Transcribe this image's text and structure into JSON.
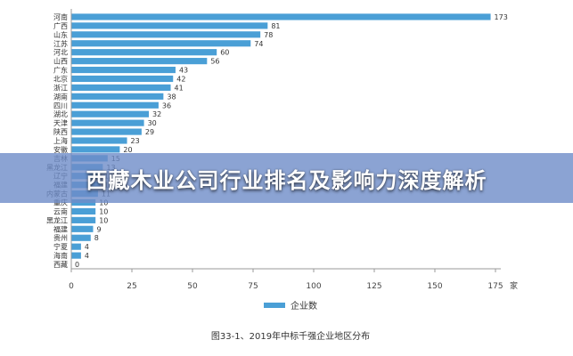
{
  "banner": {
    "title": "西藏木业公司行业排名及影响力深度解析"
  },
  "chart_data": {
    "type": "bar",
    "orientation": "horizontal",
    "categories": [
      "河南",
      "广西",
      "山东",
      "江苏",
      "河北",
      "山西",
      "广东",
      "北京",
      "浙江",
      "湖南",
      "四川",
      "湖北",
      "天津",
      "陕西",
      "上海",
      "安徽",
      "吉林",
      "黑龙江",
      "辽宁",
      "福建",
      "内蒙古",
      "重庆",
      "云南",
      "黑龙江",
      "福建",
      "贵州",
      "宁夏",
      "海南",
      "西藏"
    ],
    "series": [
      {
        "name": "企业数",
        "color": "#4a9fd6",
        "values": [
          173,
          81,
          78,
          74,
          60,
          56,
          43,
          42,
          41,
          38,
          36,
          32,
          30,
          29,
          23,
          20,
          15,
          13,
          12,
          12,
          11,
          10,
          10,
          10,
          9,
          8,
          4,
          4,
          0
        ]
      }
    ],
    "xlim": [
      0,
      175
    ],
    "xticks": [
      0,
      25,
      50,
      75,
      100,
      125,
      150,
      175
    ],
    "x_unit": "家",
    "legend": {
      "label": "企业数",
      "placement": "bottom"
    },
    "caption": "图33-1、2019年中标千强企业地区分布",
    "grid": false
  }
}
